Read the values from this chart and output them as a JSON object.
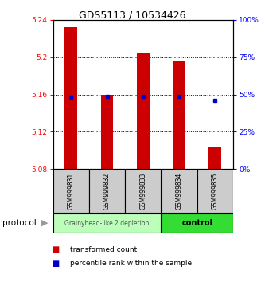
{
  "title": "GDS5113 / 10534426",
  "samples": [
    "GSM999831",
    "GSM999832",
    "GSM999833",
    "GSM999834",
    "GSM999835"
  ],
  "bar_bottom": 5.08,
  "bar_tops": [
    5.232,
    5.16,
    5.204,
    5.196,
    5.104
  ],
  "percentile_values": [
    5.157,
    5.158,
    5.158,
    5.158,
    5.154
  ],
  "ylim": [
    5.08,
    5.24
  ],
  "y_ticks_left": [
    5.08,
    5.12,
    5.16,
    5.2,
    5.24
  ],
  "y_ticks_right": [
    0,
    25,
    50,
    75,
    100
  ],
  "bar_color": "#cc0000",
  "percentile_color": "#0000cc",
  "group_labels": [
    "Grainyhead-like 2 depletion",
    "control"
  ],
  "group_colors_light": "#bbffbb",
  "group_colors_bright": "#33dd33",
  "protocol_label": "protocol",
  "legend_items": [
    "transformed count",
    "percentile rank within the sample"
  ],
  "legend_colors": [
    "#cc0000",
    "#0000cc"
  ],
  "title_fontsize": 9,
  "axis_fontsize": 7,
  "bar_width": 0.35
}
